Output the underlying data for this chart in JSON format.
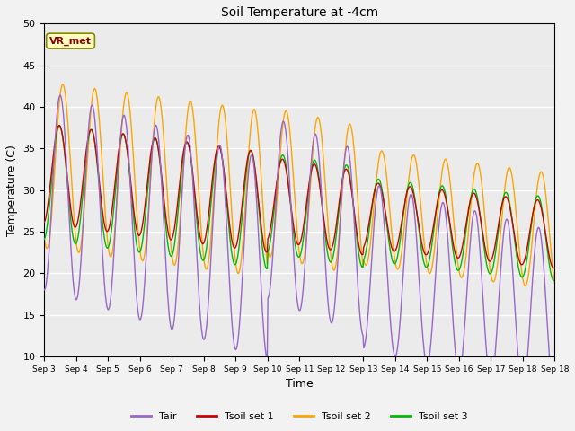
{
  "title": "Soil Temperature at -4cm",
  "xlabel": "Time",
  "ylabel": "Temperature (C)",
  "ylim": [
    10,
    50
  ],
  "yticks": [
    10,
    15,
    20,
    25,
    30,
    35,
    40,
    45,
    50
  ],
  "x_labels": [
    "Sep 3",
    "Sep 4",
    "Sep 5",
    "Sep 6",
    "Sep 7",
    "Sep 8",
    "Sep 9",
    "Sep 10",
    "Sep 11",
    "Sep 12",
    "Sep 13",
    "Sep 14",
    "Sep 15",
    "Sep 16",
    "Sep 17",
    "Sep 18",
    "Sep 18"
  ],
  "colors": {
    "Tair": "#9966CC",
    "Tsoil set 1": "#CC0000",
    "Tsoil set 2": "#FFA500",
    "Tsoil set 3": "#00BB00"
  },
  "annotation_text": "VR_met",
  "annotation_color": "#8B0000",
  "annotation_bg": "#FFFFC0",
  "bg_color": "#EBEBEB",
  "fig_bg": "#F2F2F2",
  "n_days": 16,
  "points_per_day": 48
}
